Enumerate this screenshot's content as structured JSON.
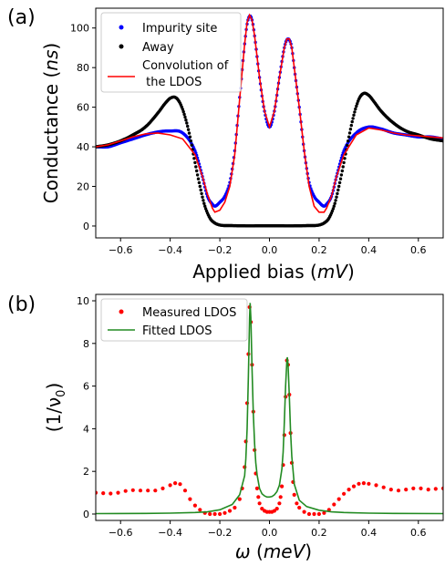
{
  "chart_data": [
    {
      "panel_label": "(a)",
      "type": "scatter",
      "xlabel": "Applied bias (mV)",
      "xlabel_parts": [
        "Applied bias (",
        "mV",
        ")"
      ],
      "ylabel": "Conductance (ns)",
      "ylabel_parts": [
        "Conductance (",
        "ns",
        ")"
      ],
      "xlim": [
        -0.7,
        0.7
      ],
      "ylim": [
        -6,
        110
      ],
      "xticks": [
        -0.6,
        -0.4,
        -0.2,
        0.0,
        0.2,
        0.4,
        0.6
      ],
      "xtick_labels": [
        "−0.6",
        "−0.4",
        "−0.2",
        "0.0",
        "0.2",
        "0.4",
        "0.6"
      ],
      "yticks": [
        0,
        20,
        40,
        60,
        80,
        100
      ],
      "ytick_labels": [
        "0",
        "20",
        "40",
        "60",
        "80",
        "100"
      ],
      "grid": false,
      "legend_position": "top-left",
      "series": [
        {
          "name": "Impurity site",
          "kind": "points",
          "color": "#0000ff",
          "x": [
            -0.7,
            -0.65,
            -0.6,
            -0.55,
            -0.5,
            -0.45,
            -0.4,
            -0.35,
            -0.3,
            -0.27,
            -0.25,
            -0.23,
            -0.22,
            -0.2,
            -0.18,
            -0.16,
            -0.14,
            -0.12,
            -0.1,
            -0.09,
            -0.08,
            -0.07,
            -0.06,
            -0.04,
            -0.02,
            0.0,
            0.02,
            0.04,
            0.06,
            0.07,
            0.08,
            0.09,
            0.1,
            0.12,
            0.14,
            0.16,
            0.18,
            0.2,
            0.22,
            0.23,
            0.25,
            0.27,
            0.3,
            0.35,
            0.4,
            0.45,
            0.5,
            0.55,
            0.6,
            0.65,
            0.7
          ],
          "y": [
            40,
            40,
            42,
            44,
            46,
            47.5,
            48,
            47,
            38,
            25,
            15,
            11,
            10,
            12,
            15,
            22,
            38,
            65,
            92,
            102,
            106,
            104,
            96,
            75,
            58,
            50,
            58,
            75,
            90,
            94,
            94,
            90,
            80,
            60,
            38,
            22,
            15,
            12,
            10,
            11,
            15,
            25,
            38,
            47,
            50,
            49,
            47,
            46,
            45,
            45,
            44
          ]
        },
        {
          "name": "Away",
          "kind": "points",
          "color": "#000000",
          "x": [
            -0.7,
            -0.65,
            -0.6,
            -0.55,
            -0.5,
            -0.45,
            -0.42,
            -0.4,
            -0.38,
            -0.36,
            -0.34,
            -0.32,
            -0.3,
            -0.28,
            -0.26,
            -0.24,
            -0.22,
            -0.2,
            -0.15,
            -0.1,
            -0.05,
            0.0,
            0.05,
            0.1,
            0.15,
            0.2,
            0.22,
            0.24,
            0.26,
            0.28,
            0.3,
            0.32,
            0.34,
            0.36,
            0.38,
            0.4,
            0.42,
            0.45,
            0.5,
            0.55,
            0.6,
            0.65,
            0.7
          ],
          "y": [
            40,
            41,
            43,
            46,
            50,
            57,
            62,
            64.5,
            65,
            62,
            55,
            45,
            32,
            20,
            10,
            4,
            1.5,
            0.5,
            0.2,
            0.1,
            0.1,
            0.1,
            0.1,
            0.1,
            0.2,
            0.5,
            1.5,
            4,
            10,
            20,
            32,
            45,
            56,
            64,
            67,
            66,
            63,
            58,
            52,
            48,
            46,
            44,
            43
          ]
        },
        {
          "name": "Convolution of\n the LDOS",
          "legend_lines": [
            "Convolution of",
            " the LDOS"
          ],
          "kind": "line",
          "color": "#ff0000",
          "x": [
            -0.7,
            -0.65,
            -0.6,
            -0.55,
            -0.5,
            -0.45,
            -0.4,
            -0.35,
            -0.3,
            -0.27,
            -0.25,
            -0.23,
            -0.22,
            -0.2,
            -0.18,
            -0.16,
            -0.14,
            -0.12,
            -0.1,
            -0.09,
            -0.08,
            -0.07,
            -0.06,
            -0.04,
            -0.02,
            0.0,
            0.02,
            0.04,
            0.06,
            0.07,
            0.08,
            0.09,
            0.1,
            0.12,
            0.14,
            0.16,
            0.18,
            0.2,
            0.22,
            0.23,
            0.25,
            0.27,
            0.3,
            0.35,
            0.4,
            0.45,
            0.5,
            0.55,
            0.6,
            0.65,
            0.7
          ],
          "y": [
            40,
            41,
            43,
            45,
            46.5,
            47,
            46,
            44,
            36,
            25,
            16,
            9,
            7,
            8,
            12,
            20,
            36,
            64,
            92,
            103,
            106.5,
            104,
            96,
            75,
            58,
            50,
            58,
            75,
            90,
            94.5,
            94.5,
            90,
            80,
            60,
            38,
            20,
            10,
            7,
            7,
            9,
            15,
            25,
            36,
            46,
            49.5,
            48.5,
            47,
            46,
            45.5,
            45,
            44.5
          ]
        }
      ]
    },
    {
      "panel_label": "(b)",
      "type": "scatter",
      "xlabel": "ω (meV)",
      "xlabel_parts": [
        "ω (",
        "meV",
        ")"
      ],
      "ylabel": "(1/ν0)",
      "ylabel_parts": [
        "(1/ν",
        "0",
        ")"
      ],
      "xlim": [
        -0.7,
        0.7
      ],
      "ylim": [
        -0.3,
        10.3
      ],
      "xticks": [
        -0.6,
        -0.4,
        -0.2,
        0.0,
        0.2,
        0.4,
        0.6
      ],
      "xtick_labels": [
        "−0.6",
        "−0.4",
        "−0.2",
        "0.0",
        "0.2",
        "0.4",
        "0.6"
      ],
      "yticks": [
        0,
        2,
        4,
        6,
        8,
        10
      ],
      "ytick_labels": [
        "0",
        "2",
        "4",
        "6",
        "8",
        "10"
      ],
      "grid": false,
      "legend_position": "top-left",
      "series": [
        {
          "name": "Measured LDOS",
          "kind": "points",
          "color": "#ff0000",
          "x": [
            -0.7,
            -0.67,
            -0.64,
            -0.61,
            -0.58,
            -0.55,
            -0.52,
            -0.49,
            -0.46,
            -0.43,
            -0.4,
            -0.38,
            -0.36,
            -0.34,
            -0.32,
            -0.3,
            -0.28,
            -0.26,
            -0.24,
            -0.22,
            -0.2,
            -0.18,
            -0.16,
            -0.14,
            -0.12,
            -0.11,
            -0.1,
            -0.095,
            -0.09,
            -0.085,
            -0.08,
            -0.075,
            -0.07,
            -0.065,
            -0.06,
            -0.055,
            -0.05,
            -0.045,
            -0.04,
            -0.03,
            -0.02,
            -0.01,
            0.0,
            0.01,
            0.02,
            0.03,
            0.04,
            0.045,
            0.05,
            0.055,
            0.06,
            0.065,
            0.07,
            0.075,
            0.08,
            0.085,
            0.09,
            0.095,
            0.1,
            0.11,
            0.12,
            0.14,
            0.16,
            0.18,
            0.2,
            0.22,
            0.24,
            0.26,
            0.28,
            0.3,
            0.32,
            0.34,
            0.36,
            0.38,
            0.4,
            0.43,
            0.46,
            0.49,
            0.52,
            0.55,
            0.58,
            0.61,
            0.64,
            0.67,
            0.7
          ],
          "y": [
            1.0,
            0.98,
            0.96,
            1.0,
            1.08,
            1.12,
            1.1,
            1.1,
            1.1,
            1.2,
            1.35,
            1.45,
            1.4,
            1.1,
            0.7,
            0.4,
            0.2,
            0.05,
            0.0,
            0.0,
            0.0,
            0.05,
            0.15,
            0.3,
            0.7,
            1.2,
            2.2,
            3.4,
            5.2,
            7.5,
            9.7,
            9.0,
            7.0,
            4.8,
            3.0,
            1.9,
            1.2,
            0.8,
            0.5,
            0.25,
            0.15,
            0.1,
            0.1,
            0.1,
            0.15,
            0.25,
            0.5,
            0.8,
            1.3,
            2.3,
            3.7,
            5.5,
            7.2,
            7.0,
            5.6,
            3.8,
            2.4,
            1.5,
            0.9,
            0.5,
            0.3,
            0.1,
            0.0,
            0.0,
            0.0,
            0.05,
            0.2,
            0.45,
            0.7,
            0.95,
            1.15,
            1.3,
            1.42,
            1.45,
            1.42,
            1.35,
            1.25,
            1.15,
            1.1,
            1.15,
            1.2,
            1.2,
            1.15,
            1.18,
            1.2
          ]
        },
        {
          "name": "Fitted LDOS",
          "kind": "line",
          "color": "#228b22",
          "x": [
            -0.7,
            -0.5,
            -0.4,
            -0.3,
            -0.25,
            -0.2,
            -0.15,
            -0.12,
            -0.1,
            -0.095,
            -0.09,
            -0.085,
            -0.08,
            -0.078,
            -0.075,
            -0.07,
            -0.065,
            -0.06,
            -0.055,
            -0.05,
            -0.04,
            -0.03,
            -0.02,
            -0.01,
            0.0,
            0.01,
            0.02,
            0.03,
            0.04,
            0.05,
            0.055,
            0.06,
            0.065,
            0.07,
            0.072,
            0.075,
            0.08,
            0.085,
            0.09,
            0.1,
            0.12,
            0.15,
            0.2,
            0.25,
            0.3,
            0.4,
            0.5,
            0.7
          ],
          "y": [
            0.02,
            0.03,
            0.04,
            0.07,
            0.1,
            0.2,
            0.45,
            0.9,
            1.8,
            2.6,
            4.0,
            6.5,
            9.2,
            9.9,
            9.2,
            6.8,
            4.7,
            3.3,
            2.4,
            1.85,
            1.2,
            0.95,
            0.85,
            0.8,
            0.8,
            0.82,
            0.9,
            1.05,
            1.35,
            2.1,
            2.9,
            4.3,
            6.0,
            7.2,
            7.35,
            7.0,
            5.5,
            3.9,
            2.7,
            1.4,
            0.65,
            0.35,
            0.18,
            0.1,
            0.07,
            0.04,
            0.03,
            0.02
          ]
        }
      ]
    }
  ]
}
